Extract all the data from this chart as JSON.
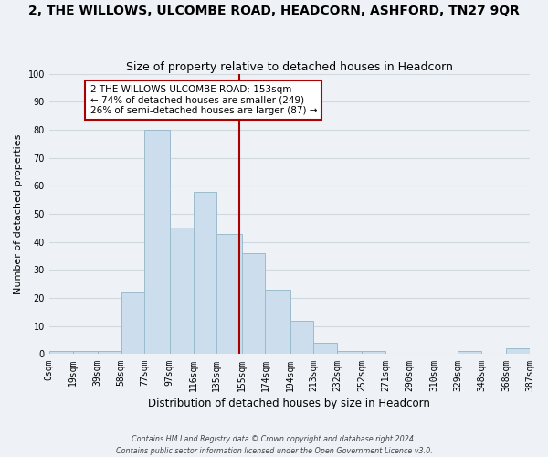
{
  "title": "2, THE WILLOWS, ULCOMBE ROAD, HEADCORN, ASHFORD, TN27 9QR",
  "subtitle": "Size of property relative to detached houses in Headcorn",
  "xlabel": "Distribution of detached houses by size in Headcorn",
  "ylabel": "Number of detached properties",
  "footer_line1": "Contains HM Land Registry data © Crown copyright and database right 2024.",
  "footer_line2": "Contains public sector information licensed under the Open Government Licence v3.0.",
  "bar_edges": [
    0,
    19,
    39,
    58,
    77,
    97,
    116,
    135,
    155,
    174,
    194,
    213,
    232,
    252,
    271,
    290,
    310,
    329,
    348,
    368,
    387
  ],
  "bar_heights": [
    1,
    1,
    1,
    22,
    80,
    45,
    58,
    43,
    36,
    23,
    12,
    4,
    1,
    1,
    0,
    0,
    0,
    1,
    0,
    2
  ],
  "bar_color": "#ccdded",
  "bar_edge_color": "#9bbccc",
  "grid_color": "#d0d8e0",
  "tick_labels": [
    "0sqm",
    "19sqm",
    "39sqm",
    "58sqm",
    "77sqm",
    "97sqm",
    "116sqm",
    "135sqm",
    "155sqm",
    "174sqm",
    "194sqm",
    "213sqm",
    "232sqm",
    "252sqm",
    "271sqm",
    "290sqm",
    "310sqm",
    "329sqm",
    "348sqm",
    "368sqm",
    "387sqm"
  ],
  "property_size": 153,
  "vline_color": "#aa0000",
  "annotation_text": "2 THE WILLOWS ULCOMBE ROAD: 153sqm\n← 74% of detached houses are smaller (249)\n26% of semi-detached houses are larger (87) →",
  "annotation_box_color": "#ffffff",
  "annotation_border_color": "#aa0000",
  "ylim": [
    0,
    100
  ],
  "background_color": "#eef2f7",
  "title_fontsize": 10,
  "subtitle_fontsize": 9
}
